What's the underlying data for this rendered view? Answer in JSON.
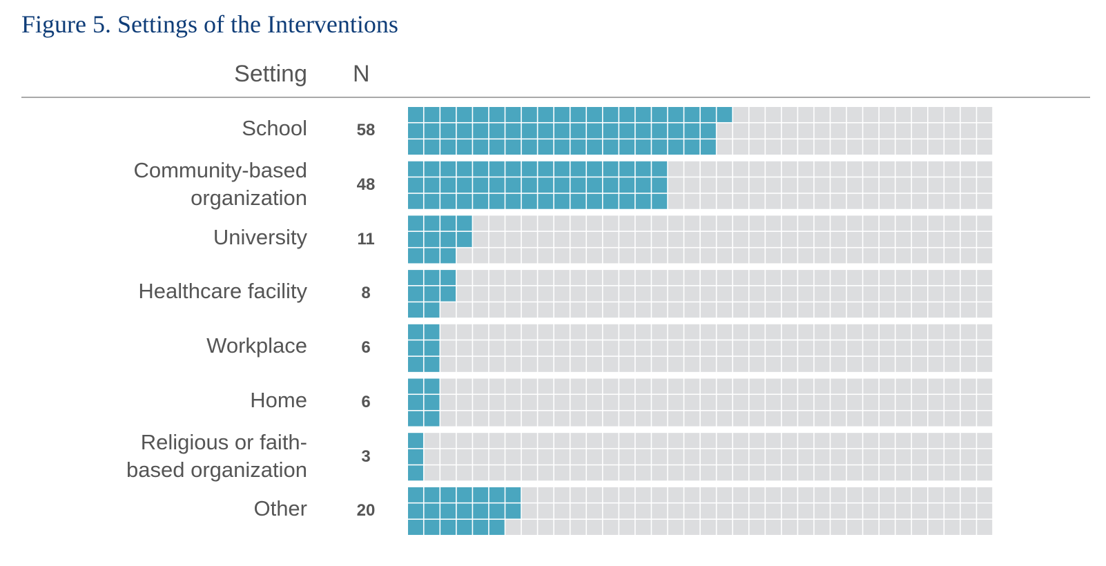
{
  "figure": {
    "title": "Figure 5. Settings of the Interventions"
  },
  "headers": {
    "setting": "Setting",
    "n": "N"
  },
  "colors": {
    "filled": "#4aa6bf",
    "empty": "#dcdddf",
    "title": "#0f3d78",
    "text": "#555555",
    "rule": "#a8a8a8"
  },
  "chart_data": {
    "type": "waffle",
    "cells_per_category": 108,
    "columns": 36,
    "rows_per_category": 3,
    "fill_order": "column-major",
    "categories": [
      "School",
      "Community-based organization",
      "University",
      "Healthcare facility",
      "Workplace",
      "Home",
      "Religious or faith-based organization",
      "Other"
    ],
    "label_lines": [
      [
        "School"
      ],
      [
        "Community-based",
        "organization"
      ],
      [
        "University"
      ],
      [
        "Healthcare facility"
      ],
      [
        "Workplace"
      ],
      [
        "Home"
      ],
      [
        "Religious or faith-",
        "based organization"
      ],
      [
        "Other"
      ]
    ],
    "values": [
      58,
      48,
      11,
      8,
      6,
      6,
      3,
      20
    ],
    "n_labels": [
      "58",
      "48",
      "11",
      "8",
      "6",
      "6",
      "3",
      "20"
    ]
  }
}
